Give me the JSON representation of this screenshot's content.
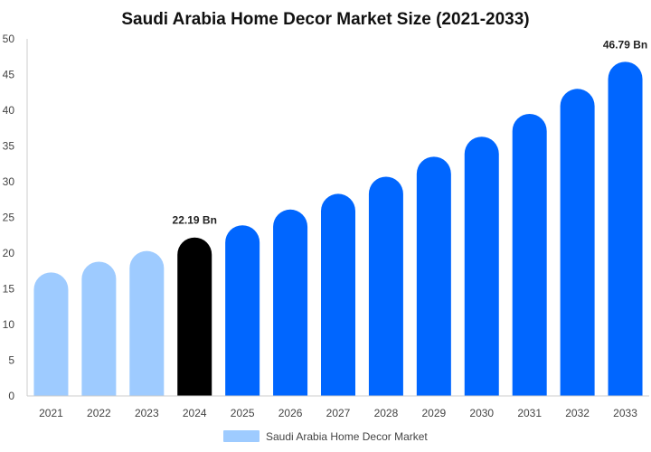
{
  "chart_data": {
    "type": "bar",
    "title": "Saudi Arabia Home Decor Market Size (2021-2033)",
    "xlabel": "",
    "ylabel": "",
    "categories": [
      "2021",
      "2022",
      "2023",
      "2024",
      "2025",
      "2026",
      "2027",
      "2028",
      "2029",
      "2030",
      "2031",
      "2032",
      "2033"
    ],
    "series": [
      {
        "name": "Saudi Arabia Home Decor Market",
        "values": [
          17.3,
          18.8,
          20.3,
          22.19,
          23.9,
          26.1,
          28.3,
          30.7,
          33.5,
          36.3,
          39.5,
          43.0,
          46.79
        ]
      }
    ],
    "ylim": [
      0,
      50
    ],
    "yticks": [
      0,
      5,
      10,
      15,
      20,
      25,
      30,
      35,
      40,
      45,
      50
    ],
    "grid": false,
    "legend": "bottom",
    "bar_colors": {
      "historical": "#9ecbff",
      "current": "#000000",
      "forecast": "#0066ff"
    },
    "historical_indices": [
      0,
      1,
      2
    ],
    "highlight_index": 3,
    "data_labels": [
      {
        "index": 3,
        "text": "22.19 Bn"
      },
      {
        "index": 12,
        "text": "46.79 Bn"
      }
    ]
  }
}
